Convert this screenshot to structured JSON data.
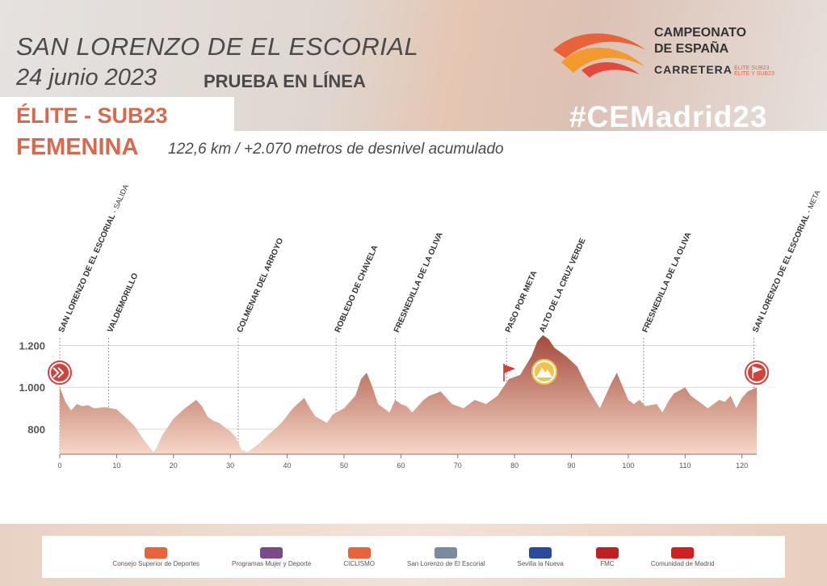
{
  "header": {
    "city": "SAN LORENZO DE EL ESCORIAL",
    "date": "24 junio 2023",
    "race_type": "PRUEBA EN LÍNEA",
    "category_line1": "ÉLITE - SUB23",
    "category_line2": "FEMENINA",
    "distance_info": "122,6 km / +2.070 metros de desnivel acumulado",
    "hashtag": "#CEMadrid23"
  },
  "logo": {
    "line1": "CAMPEONATO",
    "line2": "DE ESPAÑA",
    "line3": "CARRETERA",
    "line4": "ÉLITE SUB23 · ÉLITE Y SUB23"
  },
  "colors": {
    "accent": "#d9694d",
    "profile_top": "#a44a3a",
    "profile_bottom": "#f6d7c7",
    "mountain_badge": "#f2c24a"
  },
  "chart_data": {
    "type": "area",
    "title": "",
    "xlabel": "",
    "ylabel": "",
    "xlim": [
      0,
      122.6
    ],
    "ylim": [
      680,
      1260
    ],
    "xticks": [
      0,
      10,
      20,
      30,
      40,
      50,
      60,
      70,
      80,
      90,
      100,
      110,
      120
    ],
    "yticks": [
      800,
      1000,
      1200
    ],
    "ytick_labels": [
      "800",
      "1.000",
      "1.200"
    ],
    "grid": true,
    "profile": {
      "x": [
        0,
        1,
        2,
        3,
        4,
        5,
        6,
        8,
        9,
        10,
        11,
        13,
        15,
        16.5,
        17,
        18,
        20,
        22,
        24,
        25,
        26,
        27,
        28,
        30,
        31,
        32,
        33,
        35,
        37,
        39,
        41,
        43,
        44,
        45,
        47,
        48,
        50,
        52,
        53,
        54,
        55,
        56,
        58,
        59,
        60,
        61,
        62,
        63,
        64,
        65,
        67,
        69,
        71,
        73,
        75,
        77,
        79,
        81,
        83,
        84,
        85,
        86,
        87,
        89,
        91,
        93,
        95,
        96,
        97,
        98,
        100,
        101,
        102,
        103,
        105,
        106,
        107,
        108,
        110,
        111,
        112,
        114,
        116,
        117,
        118,
        119,
        120,
        121,
        122.6
      ],
      "elevation": [
        1000,
        930,
        890,
        920,
        910,
        915,
        900,
        905,
        900,
        895,
        870,
        820,
        740,
        690,
        710,
        770,
        850,
        900,
        940,
        910,
        860,
        840,
        830,
        790,
        760,
        700,
        690,
        730,
        780,
        830,
        900,
        950,
        900,
        860,
        830,
        870,
        900,
        960,
        1040,
        1070,
        1000,
        920,
        880,
        940,
        920,
        910,
        880,
        910,
        940,
        960,
        980,
        920,
        900,
        940,
        920,
        960,
        1040,
        1060,
        1150,
        1220,
        1250,
        1230,
        1190,
        1150,
        1100,
        990,
        900,
        960,
        1020,
        1070,
        940,
        920,
        940,
        910,
        920,
        880,
        930,
        970,
        1000,
        960,
        940,
        900,
        940,
        930,
        960,
        900,
        950,
        980,
        1000
      ]
    },
    "waypoints": [
      {
        "km": 0,
        "name": "SAN LORENZO DE EL ESCORIAL",
        "note": "- SALIDA"
      },
      {
        "km": 8.6,
        "name": "VALDEMORILLO",
        "note": ""
      },
      {
        "km": 31.4,
        "name": "COLMENAR DEL ARROYO",
        "note": ""
      },
      {
        "km": 48.6,
        "name": "ROBLEDO DE CHAVELA",
        "note": ""
      },
      {
        "km": 59,
        "name": "FRESNEDILLA DE LA OLIVA",
        "note": ""
      },
      {
        "km": 78.6,
        "name": "PASO POR META",
        "note": ""
      },
      {
        "km": 84.6,
        "name": "ALTO DE LA CRUZ VERDE",
        "note": ""
      },
      {
        "km": 102.7,
        "name": "FRESNEDILLA DE LA OLIVA",
        "note": ""
      },
      {
        "km": 122.1,
        "name": "SAN LORENZO DE EL ESCORIAL",
        "note": "- META"
      }
    ]
  },
  "sponsors": [
    {
      "name": "Consejo Superior de Deportes",
      "icon": "csd-logo"
    },
    {
      "name": "Programas Mujer y Deporte",
      "icon": "myd-logo"
    },
    {
      "name": "CICLISMO",
      "icon": "cycling-federation-logo"
    },
    {
      "name": "San Lorenzo de El Escorial",
      "icon": "town-crest-logo"
    },
    {
      "name": "Sevilla la Nueva",
      "icon": "sevilla-la-nueva-logo"
    },
    {
      "name": "FMC",
      "icon": "fmc-logo"
    },
    {
      "name": "Comunidad de Madrid",
      "icon": "madrid-community-logo"
    }
  ]
}
